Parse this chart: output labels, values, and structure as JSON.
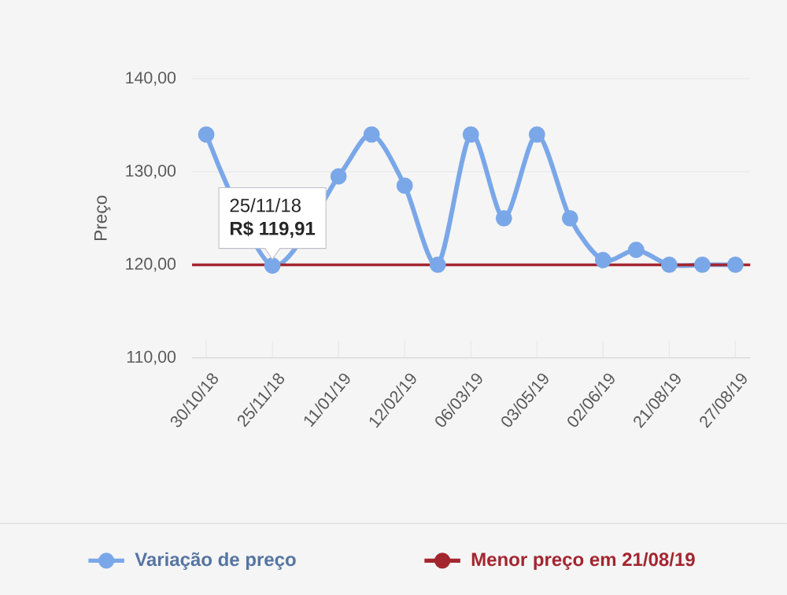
{
  "chart_data": {
    "type": "line",
    "ylabel": "Preço",
    "categories": [
      "30/10/18",
      null,
      "25/11/18",
      null,
      "11/01/19",
      null,
      "12/02/19",
      null,
      "06/03/19",
      null,
      "03/05/19",
      null,
      "02/06/19",
      null,
      "21/08/19",
      null,
      "27/08/19"
    ],
    "series": [
      {
        "name": "Variação de preço",
        "color": "#7aa7e8",
        "values": [
          134,
          null,
          119.91,
          null,
          129.5,
          134,
          128.5,
          120,
          134,
          125,
          134,
          125,
          120.5,
          121.6,
          120,
          120,
          120
        ]
      }
    ],
    "ylim": [
      110,
      140
    ],
    "yticks": [
      {
        "value": 110,
        "label": "110,00"
      },
      {
        "value": 120,
        "label": "120,00"
      },
      {
        "value": 130,
        "label": "130,00"
      },
      {
        "value": 140,
        "label": "140,00"
      }
    ],
    "ref_lines": [
      {
        "axis": "y",
        "value": 120,
        "label": "Menor preço em 21/08/19",
        "color": "#a3262f"
      }
    ],
    "annotations": [
      {
        "text": "25/11/18",
        "x": "25/11/18",
        "y": 119.91
      },
      {
        "text": "R$ 119,91",
        "x": "25/11/18",
        "y": 119.91
      }
    ],
    "grid": "y",
    "legend": "bottom",
    "marker": "circle",
    "line_style": "solid"
  }
}
